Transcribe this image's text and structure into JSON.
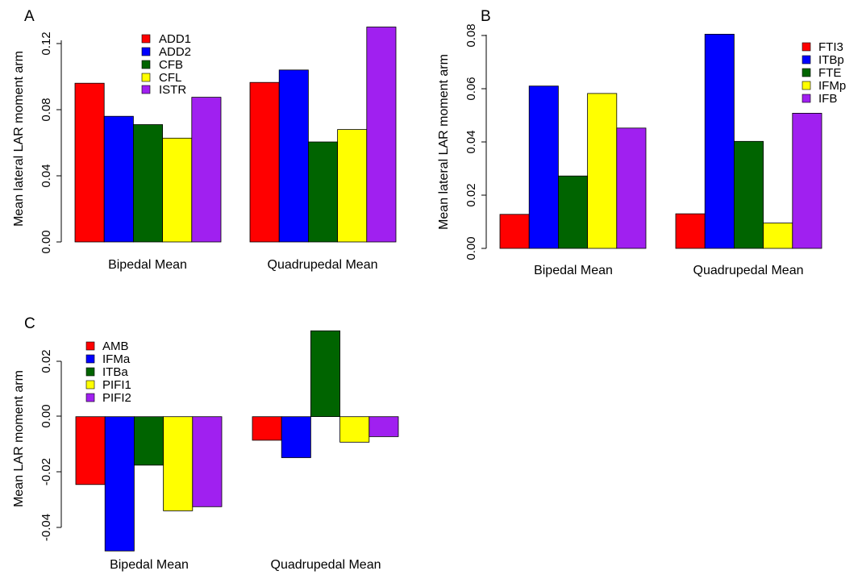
{
  "chart_data": [
    {
      "type": "bar",
      "panel_label": "A",
      "categories": [
        "Bipedal Mean",
        "Quadrupedal Mean"
      ],
      "series": [
        {
          "name": "ADD1",
          "color": "#ff0000",
          "values": [
            0.096,
            0.0965
          ]
        },
        {
          "name": "ADD2",
          "color": "#0000ff",
          "values": [
            0.076,
            0.104
          ]
        },
        {
          "name": "CFB",
          "color": "#006400",
          "values": [
            0.071,
            0.0605
          ]
        },
        {
          "name": "CFL",
          "color": "#ffff00",
          "values": [
            0.0628,
            0.068
          ]
        },
        {
          "name": "ISTR",
          "color": "#a020f0",
          "values": [
            0.0875,
            0.13
          ]
        }
      ],
      "ylabel": "Mean lateral LAR moment arm",
      "yticks": [
        0.0,
        0.04,
        0.08,
        0.12
      ],
      "ytick_labels": [
        "0.00",
        "0.04",
        "0.08",
        "0.12"
      ],
      "ylim": [
        0,
        0.13
      ],
      "legend_position": "top-center",
      "grid": false
    },
    {
      "type": "bar",
      "panel_label": "B",
      "categories": [
        "Bipedal Mean",
        "Quadrupedal Mean"
      ],
      "series": [
        {
          "name": "FTI3",
          "color": "#ff0000",
          "values": [
            0.0128,
            0.013
          ]
        },
        {
          "name": "ITBp",
          "color": "#0000ff",
          "values": [
            0.061,
            0.0805
          ]
        },
        {
          "name": "FTE",
          "color": "#006400",
          "values": [
            0.0272,
            0.0402
          ]
        },
        {
          "name": "IFMp",
          "color": "#ffff00",
          "values": [
            0.0582,
            0.0095
          ]
        },
        {
          "name": "IFB",
          "color": "#a020f0",
          "values": [
            0.0452,
            0.0508
          ]
        }
      ],
      "ylabel": "Mean lateral LAR moment arm",
      "yticks": [
        0.0,
        0.02,
        0.04,
        0.06,
        0.08
      ],
      "ytick_labels": [
        "0.00",
        "0.02",
        "0.04",
        "0.06",
        "0.08"
      ],
      "ylim": [
        0,
        0.0805
      ],
      "legend_position": "top-right",
      "grid": false
    },
    {
      "type": "bar",
      "panel_label": "C",
      "categories": [
        "Bipedal Mean",
        "Quadrupedal Mean"
      ],
      "series": [
        {
          "name": "AMB",
          "color": "#ff0000",
          "values": [
            -0.0245,
            -0.0085
          ]
        },
        {
          "name": "IFMa",
          "color": "#0000ff",
          "values": [
            -0.0485,
            -0.0148
          ]
        },
        {
          "name": "ITBa",
          "color": "#006400",
          "values": [
            -0.0175,
            0.031
          ]
        },
        {
          "name": "PIFI1",
          "color": "#ffff00",
          "values": [
            -0.034,
            -0.0092
          ]
        },
        {
          "name": "PIFI2",
          "color": "#a020f0",
          "values": [
            -0.0325,
            -0.0072
          ]
        }
      ],
      "ylabel": "Mean LAR moment arm",
      "yticks": [
        -0.04,
        -0.02,
        0.0,
        0.02
      ],
      "ytick_labels": [
        "-0.04",
        "-0.02",
        "0.00",
        "0.02"
      ],
      "ylim": [
        -0.0485,
        0.031
      ],
      "legend_position": "top-left",
      "grid": false
    }
  ]
}
